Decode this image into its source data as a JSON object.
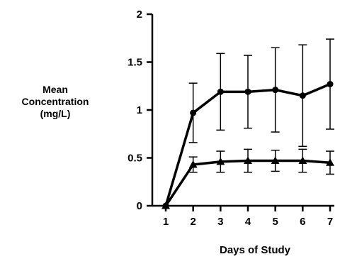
{
  "chart_data": {
    "type": "line",
    "title": "",
    "ylabel_lines": [
      "Mean",
      "Concentration",
      "(mg/L)"
    ],
    "xlabel": "Days of Study",
    "x": [
      1,
      2,
      3,
      4,
      5,
      6,
      7
    ],
    "xlim": [
      1,
      7
    ],
    "ylim": [
      0,
      2
    ],
    "y_ticks": [
      0,
      0.5,
      1,
      1.5,
      2
    ],
    "y_tick_labels": [
      "0",
      "0.5",
      "1",
      "1.5",
      "2"
    ],
    "x_tick_labels": [
      "1",
      "2",
      "3",
      "4",
      "5",
      "6",
      "7"
    ],
    "grid": false,
    "legend": "none",
    "series": [
      {
        "marker": "circle",
        "values": [
          0,
          0.97,
          1.19,
          1.19,
          1.21,
          1.15,
          1.27
        ],
        "error": [
          0,
          0.31,
          0.4,
          0.38,
          0.44,
          0.53,
          0.47
        ],
        "color": "#000000"
      },
      {
        "marker": "triangle",
        "values": [
          0,
          0.43,
          0.46,
          0.47,
          0.47,
          0.47,
          0.45
        ],
        "error": [
          0,
          0.08,
          0.11,
          0.12,
          0.11,
          0.12,
          0.12
        ],
        "color": "#000000"
      }
    ]
  }
}
